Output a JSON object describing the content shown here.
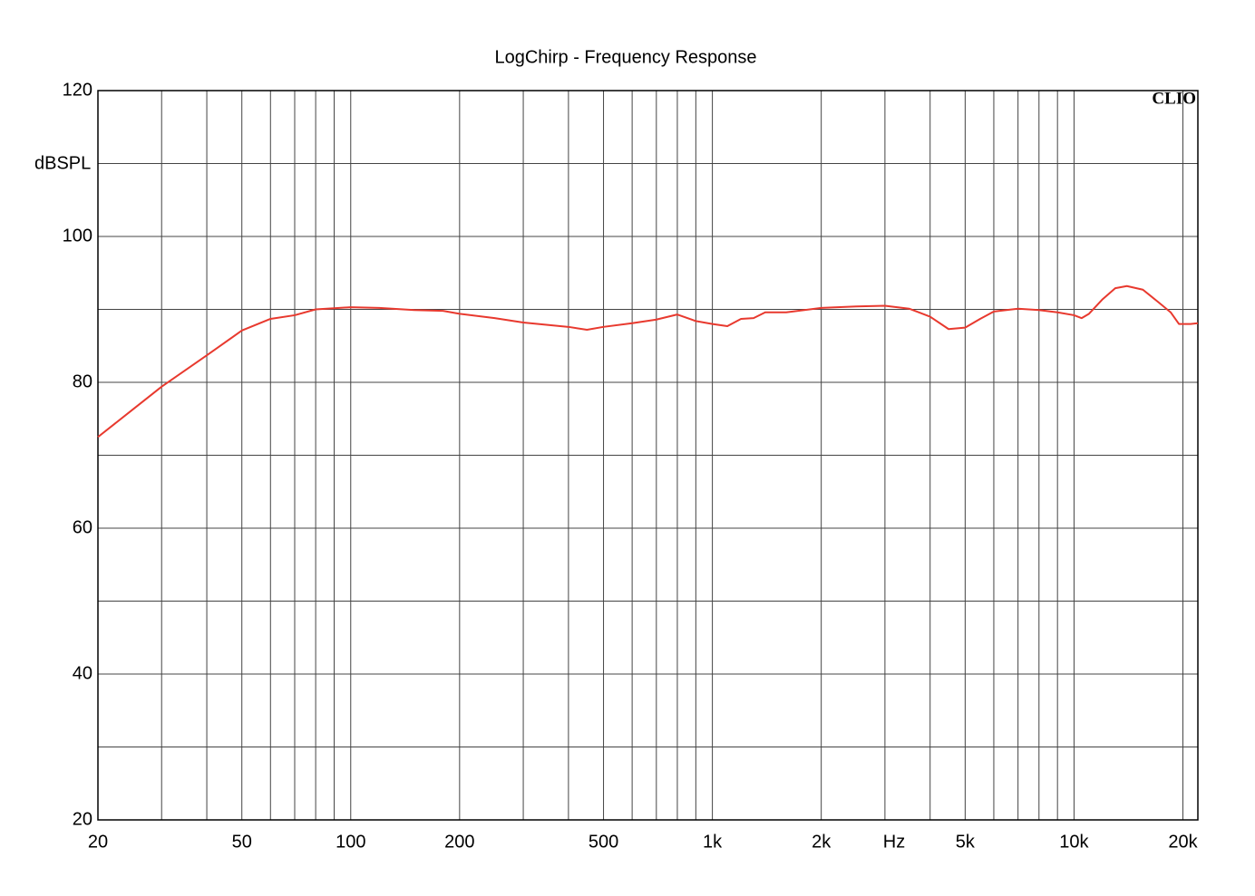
{
  "chart_data": {
    "type": "line",
    "title": "LogChirp - Frequency Response",
    "ylabel": "dBSPL",
    "xlabel": "Hz",
    "watermark": "CLIO",
    "xscale": "log",
    "xlim": [
      20,
      22000
    ],
    "ylim": [
      20,
      120
    ],
    "xticks": [
      20,
      50,
      100,
      200,
      500,
      {
        "value": 1000,
        "label": "1k"
      },
      {
        "value": 2000,
        "label": "2k"
      },
      {
        "value": 5000,
        "label": "5k"
      },
      {
        "value": 10000,
        "label": "10k"
      },
      {
        "value": 20000,
        "label": "20k"
      }
    ],
    "xgrid": [
      30,
      40,
      60,
      70,
      80,
      90,
      300,
      400,
      600,
      700,
      800,
      900,
      3000,
      4000,
      6000,
      7000,
      8000,
      9000
    ],
    "yticks": [
      20,
      40,
      60,
      80,
      100,
      120
    ],
    "ygrid": [
      30,
      50,
      70,
      90,
      110
    ],
    "grid": true,
    "series": [
      {
        "color": "#e8392e",
        "x": [
          20,
          25,
          30,
          40,
          50,
          60,
          70,
          80,
          100,
          120,
          150,
          180,
          200,
          250,
          300,
          400,
          450,
          500,
          600,
          700,
          800,
          900,
          1000,
          1100,
          1200,
          1300,
          1400,
          1600,
          2000,
          2500,
          3000,
          3500,
          4000,
          4500,
          5000,
          5500,
          6000,
          7000,
          8000,
          9000,
          10000,
          10500,
          11000,
          12000,
          13000,
          14000,
          15500,
          17000,
          18500,
          19500,
          21000,
          22000
        ],
        "values": [
          72.5,
          76.3,
          79.4,
          83.7,
          87.1,
          88.7,
          89.2,
          90.0,
          90.3,
          90.2,
          89.9,
          89.8,
          89.4,
          88.8,
          88.2,
          87.6,
          87.2,
          87.6,
          88.1,
          88.6,
          89.3,
          88.4,
          88.0,
          87.7,
          88.7,
          88.8,
          89.6,
          89.6,
          90.2,
          90.4,
          90.5,
          90.1,
          89.0,
          87.3,
          87.5,
          88.7,
          89.7,
          90.1,
          89.9,
          89.6,
          89.2,
          88.8,
          89.4,
          91.4,
          92.9,
          93.2,
          92.7,
          91.1,
          89.6,
          88.0,
          88.0,
          88.1
        ]
      }
    ]
  }
}
